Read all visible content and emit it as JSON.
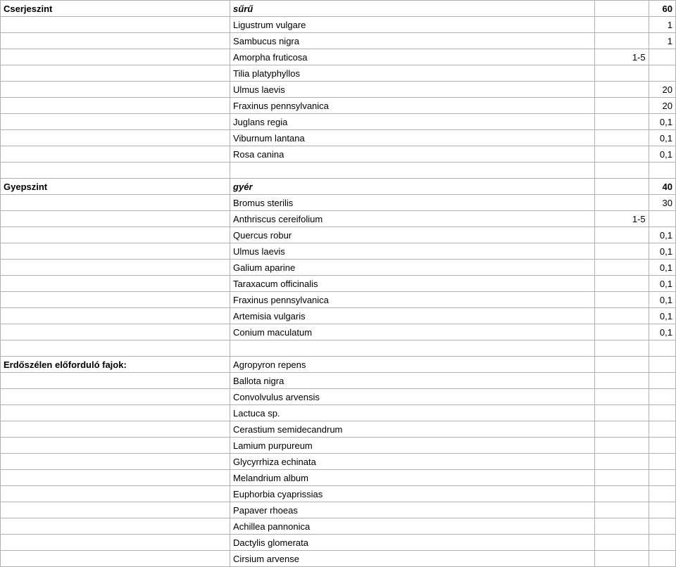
{
  "sections": [
    {
      "header": {
        "label": "Cserjeszint",
        "descriptor": "sűrű",
        "val3": "",
        "val4": "60"
      },
      "rows": [
        {
          "name": "Ligustrum vulgare",
          "v3": "",
          "v4": "1"
        },
        {
          "name": "Sambucus nigra",
          "v3": "",
          "v4": "1"
        },
        {
          "name": "Amorpha fruticosa",
          "v3": "1-5",
          "v4": ""
        },
        {
          "name": "Tilia platyphyllos",
          "v3": "",
          "v4": ""
        },
        {
          "name": "Ulmus laevis",
          "v3": "",
          "v4": "20"
        },
        {
          "name": "Fraxinus pennsylvanica",
          "v3": "",
          "v4": "20"
        },
        {
          "name": "Juglans regia",
          "v3": "",
          "v4": "0,1"
        },
        {
          "name": "Viburnum lantana",
          "v3": "",
          "v4": "0,1"
        },
        {
          "name": "Rosa canina",
          "v3": "",
          "v4": "0,1"
        }
      ]
    },
    {
      "header": {
        "label": "Gyepszint",
        "descriptor": "gyér",
        "val3": "",
        "val4": "40"
      },
      "rows": [
        {
          "name": "Bromus sterilis",
          "v3": "",
          "v4": "30"
        },
        {
          "name": "Anthriscus cereifolium",
          "v3": "1-5",
          "v4": ""
        },
        {
          "name": "Quercus robur",
          "v3": "",
          "v4": "0,1"
        },
        {
          "name": "Ulmus laevis",
          "v3": "",
          "v4": "0,1"
        },
        {
          "name": "Galium aparine",
          "v3": "",
          "v4": "0,1"
        },
        {
          "name": "Taraxacum officinalis",
          "v3": "",
          "v4": "0,1"
        },
        {
          "name": "Fraxinus pennsylvanica",
          "v3": "",
          "v4": "0,1"
        },
        {
          "name": "Artemisia vulgaris",
          "v3": "",
          "v4": "0,1"
        },
        {
          "name": "Conium maculatum",
          "v3": "",
          "v4": "0,1"
        }
      ]
    },
    {
      "header": {
        "label": "Erdőszélen előforduló fajok:",
        "descriptor": "Agropyron repens",
        "val3": "",
        "val4": ""
      },
      "rows": [
        {
          "name": "Ballota nigra",
          "v3": "",
          "v4": ""
        },
        {
          "name": "Convolvulus arvensis",
          "v3": "",
          "v4": ""
        },
        {
          "name": "Lactuca sp.",
          "v3": "",
          "v4": ""
        },
        {
          "name": "Cerastium semidecandrum",
          "v3": "",
          "v4": ""
        },
        {
          "name": "Lamium purpureum",
          "v3": "",
          "v4": ""
        },
        {
          "name": "Glycyrrhiza echinata",
          "v3": "",
          "v4": ""
        },
        {
          "name": "Melandrium album",
          "v3": "",
          "v4": ""
        },
        {
          "name": "Euphorbia cyaprissias",
          "v3": "",
          "v4": ""
        },
        {
          "name": "Papaver rhoeas",
          "v3": "",
          "v4": ""
        },
        {
          "name": "Achillea pannonica",
          "v3": "",
          "v4": ""
        },
        {
          "name": "Dactylis glomerata",
          "v3": "",
          "v4": ""
        },
        {
          "name": "Cirsium arvense",
          "v3": "",
          "v4": ""
        }
      ]
    }
  ]
}
